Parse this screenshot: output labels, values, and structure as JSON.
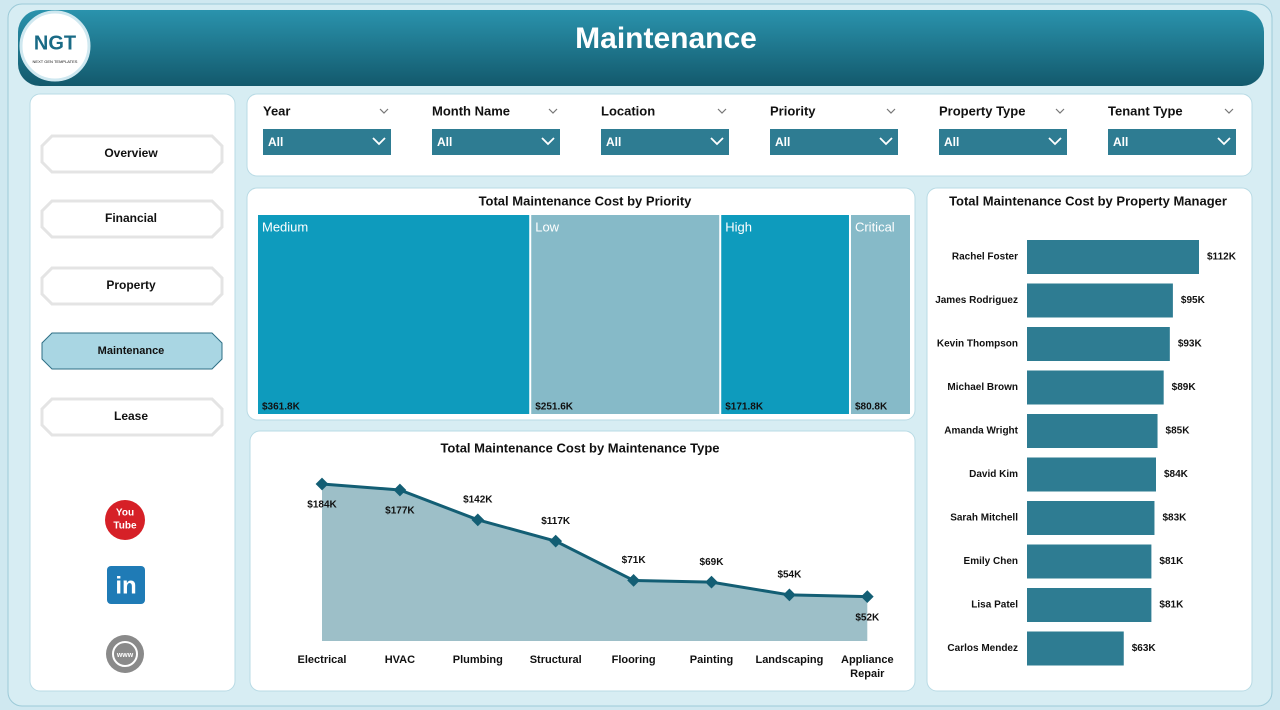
{
  "header": {
    "logo": "NGT",
    "logo_sub": "NEXT GEN TEMPLATES",
    "title": "Maintenance"
  },
  "nav": {
    "items": [
      "Overview",
      "Financial",
      "Property",
      "Maintenance",
      "Lease"
    ],
    "active": 3
  },
  "social": {
    "youtube": [
      "You",
      "Tube"
    ],
    "linkedin": "in",
    "web": "www"
  },
  "filters": [
    {
      "label": "Year",
      "value": "All"
    },
    {
      "label": "Month Name",
      "value": "All"
    },
    {
      "label": "Location",
      "value": "All"
    },
    {
      "label": "Priority",
      "value": "All"
    },
    {
      "label": "Property Type",
      "value": "All"
    },
    {
      "label": "Tenant Type",
      "value": "All"
    }
  ],
  "chart_data": [
    {
      "type": "treemap",
      "title": "Total Maintenance Cost by Priority",
      "categories": [
        "Medium",
        "Low",
        "High",
        "Critical"
      ],
      "values": [
        361.8,
        251.6,
        171.8,
        80.8
      ],
      "value_labels": [
        "$361.8K",
        "$251.6K",
        "$171.8K",
        "$80.8K"
      ],
      "colors": [
        "#0e9bbd",
        "#86bac8",
        "#0e9bbd",
        "#86bac8"
      ]
    },
    {
      "type": "area",
      "title": "Total Maintenance Cost by Maintenance Type",
      "categories": [
        "Electrical",
        "HVAC",
        "Plumbing",
        "Structural",
        "Flooring",
        "Painting",
        "Landscaping",
        "Appliance Repair"
      ],
      "values": [
        184,
        177,
        142,
        117,
        71,
        69,
        54,
        52
      ],
      "value_labels": [
        "$184K",
        "$177K",
        "$142K",
        "$117K",
        "$71K",
        "$69K",
        "$54K",
        "$52K"
      ],
      "color": "#135e74",
      "fill": "#9dbfc8"
    },
    {
      "type": "hbar",
      "title": "Total Maintenance Cost by Property Manager",
      "categories": [
        "Rachel Foster",
        "James Rodriguez",
        "Kevin Thompson",
        "Michael Brown",
        "Amanda Wright",
        "David Kim",
        "Sarah Mitchell",
        "Emily Chen",
        "Lisa Patel",
        "Carlos Mendez"
      ],
      "values": [
        112,
        95,
        93,
        89,
        85,
        84,
        83,
        81,
        81,
        63
      ],
      "value_labels": [
        "$112K",
        "$95K",
        "$93K",
        "$89K",
        "$85K",
        "$84K",
        "$83K",
        "$81K",
        "$81K",
        "$63K"
      ],
      "color": "#2e7c92"
    }
  ]
}
